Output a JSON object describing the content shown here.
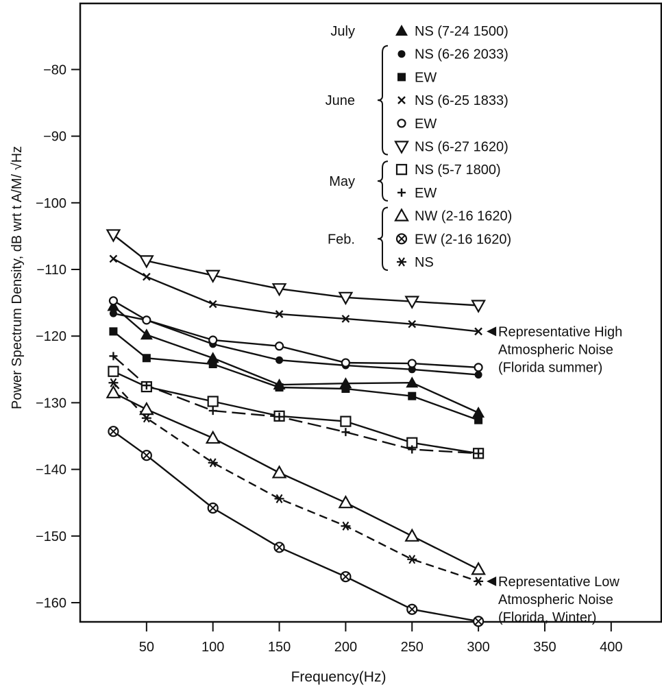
{
  "chart_data": {
    "type": "line",
    "xlabel": "Frequency(Hz)",
    "ylabel": "Power Spectrum Density, dB wrt t A/M/ √Hz",
    "xlim": [
      0,
      440
    ],
    "ylim": [
      -165,
      -60
    ],
    "xticks": [
      50,
      100,
      150,
      200,
      250,
      300,
      350,
      400
    ],
    "yticks": [
      -80,
      -90,
      -100,
      -110,
      -120,
      -130,
      -140,
      -150,
      -160
    ],
    "legend_position": "top-right",
    "legend_groups": [
      {
        "month": "July",
        "entries": [
          {
            "series": 0,
            "label": "NS (7-24 1500)"
          }
        ]
      },
      {
        "month": "June",
        "entries": [
          {
            "series": 1,
            "label": "NS (6-26 2033)"
          },
          {
            "series": 2,
            "label": "EW"
          },
          {
            "series": 3,
            "label": "NS (6-25 1833)"
          },
          {
            "series": 4,
            "label": "EW"
          },
          {
            "series": 5,
            "label": "NS (6-27 1620)"
          }
        ]
      },
      {
        "month": "May",
        "entries": [
          {
            "series": 6,
            "label": "NS (5-7 1800)"
          },
          {
            "series": 7,
            "label": "EW"
          }
        ]
      },
      {
        "month": "Feb.",
        "entries": [
          {
            "series": 8,
            "label": "NW (2-16 1620)"
          },
          {
            "series": 9,
            "label": "EW (2-16 1620)"
          },
          {
            "series": 10,
            "label": "NS"
          }
        ]
      }
    ],
    "x": [
      25,
      50,
      100,
      150,
      200,
      250,
      300
    ],
    "series": [
      {
        "marker": "filled-triangle",
        "dash": "solid",
        "values": [
          -115.5,
          -119.8,
          -123.3,
          -127.3,
          -127.1,
          -127.0,
          -131.5
        ]
      },
      {
        "marker": "filled-circle",
        "dash": "solid",
        "values": [
          -116.6,
          -117.6,
          -121.2,
          -123.6,
          -124.4,
          -125.0,
          -125.8
        ]
      },
      {
        "marker": "filled-square",
        "dash": "solid",
        "values": [
          -119.3,
          -123.3,
          -124.2,
          -127.7,
          -127.9,
          -129.0,
          -132.6
        ]
      },
      {
        "marker": "x",
        "dash": "solid",
        "values": [
          -108.4,
          -111.1,
          -115.2,
          -116.7,
          -117.4,
          -118.2,
          -119.3
        ]
      },
      {
        "marker": "open-circle",
        "dash": "solid",
        "values": [
          -114.7,
          -117.6,
          -120.6,
          -121.5,
          -124.0,
          -124.1,
          -124.7
        ]
      },
      {
        "marker": "open-triangle-down",
        "dash": "solid",
        "values": [
          -104.8,
          -108.7,
          -110.9,
          -112.9,
          -114.2,
          -114.8,
          -115.4
        ]
      },
      {
        "marker": "open-square",
        "dash": "solid",
        "values": [
          -125.3,
          -127.6,
          -129.8,
          -132.0,
          -132.8,
          -136.0,
          -137.6
        ]
      },
      {
        "marker": "plus",
        "dash": "long-dash",
        "values": [
          -123.0,
          -127.4,
          -131.2,
          -132.1,
          -134.4,
          -137.0,
          -137.6
        ]
      },
      {
        "marker": "open-triangle",
        "dash": "solid",
        "values": [
          -128.5,
          -131.0,
          -135.3,
          -140.5,
          -145.0,
          -150.0,
          -155.0
        ]
      },
      {
        "marker": "circled-x",
        "dash": "solid",
        "values": [
          -134.3,
          -137.9,
          -145.8,
          -151.7,
          -156.1,
          -161.0,
          -162.8
        ]
      },
      {
        "marker": "asterisk",
        "dash": "dashed",
        "values": [
          -127.0,
          -132.3,
          -139.0,
          -144.4,
          -148.5,
          -153.5,
          -156.8
        ]
      }
    ],
    "annotations": [
      {
        "target_series": 3,
        "lines": [
          "Representative High",
          "Atmospheric Noise",
          "(Florida summer)"
        ]
      },
      {
        "target_series": 10,
        "lines": [
          "Representative Low",
          "Atmospheric Noise",
          "(Florida, Winter)"
        ]
      }
    ]
  }
}
